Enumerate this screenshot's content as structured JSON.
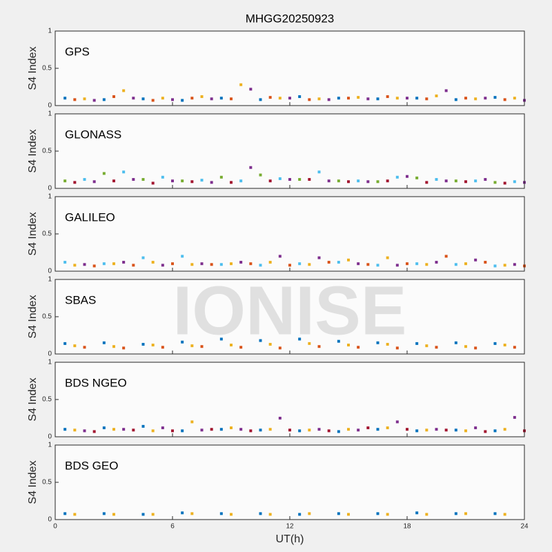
{
  "watermark": "IONISE",
  "chart_data": [
    {
      "type": "scatter",
      "title": "MHGG20250923",
      "label": "GPS",
      "ylabel": "S4 Index",
      "xlim": [
        0,
        24
      ],
      "xticks": [
        0,
        6,
        12,
        18,
        24
      ],
      "ylim": [
        0,
        1
      ],
      "yticks": [
        0,
        0.5,
        1
      ],
      "series": [
        {
          "color": "#0072BD",
          "x": [
            0.5,
            2.5,
            4.5,
            6.5,
            8.5,
            10.5,
            12.5,
            14.5,
            16.5,
            18.5,
            20.5,
            22.5
          ],
          "values": [
            0.1,
            0.08,
            0.09,
            0.07,
            0.1,
            0.08,
            0.12,
            0.1,
            0.09,
            0.1,
            0.08,
            0.11
          ]
        },
        {
          "color": "#D95319",
          "x": [
            1,
            3,
            5,
            7,
            9,
            11,
            13,
            15,
            17,
            19,
            21,
            23
          ],
          "values": [
            0.08,
            0.12,
            0.07,
            0.1,
            0.09,
            0.11,
            0.08,
            0.1,
            0.12,
            0.09,
            0.1,
            0.08
          ]
        },
        {
          "color": "#EDB120",
          "x": [
            1.5,
            3.5,
            5.5,
            7.5,
            9.5,
            11.5,
            13.5,
            15.5,
            17.5,
            19.5,
            21.5,
            23.5
          ],
          "values": [
            0.09,
            0.2,
            0.1,
            0.12,
            0.28,
            0.1,
            0.09,
            0.11,
            0.1,
            0.13,
            0.09,
            0.1
          ]
        },
        {
          "color": "#7E2F8E",
          "x": [
            2,
            4,
            6,
            8,
            10,
            12,
            14,
            16,
            18,
            20,
            22,
            24
          ],
          "values": [
            0.07,
            0.1,
            0.08,
            0.09,
            0.22,
            0.1,
            0.08,
            0.09,
            0.1,
            0.2,
            0.1,
            0.07
          ]
        }
      ]
    },
    {
      "type": "scatter",
      "label": "GLONASS",
      "ylabel": "S4 Index",
      "xlim": [
        0,
        24
      ],
      "xticks": [
        0,
        6,
        12,
        18,
        24
      ],
      "ylim": [
        0,
        1
      ],
      "yticks": [
        0,
        0.5,
        1
      ],
      "series": [
        {
          "color": "#77AC30",
          "x": [
            0.5,
            2.5,
            4.5,
            6.5,
            8.5,
            10.5,
            12.5,
            14.5,
            16.5,
            18.5,
            20.5,
            22.5
          ],
          "values": [
            0.1,
            0.2,
            0.12,
            0.1,
            0.15,
            0.18,
            0.12,
            0.1,
            0.09,
            0.14,
            0.1,
            0.08
          ]
        },
        {
          "color": "#A2142F",
          "x": [
            1,
            3,
            5,
            7,
            9,
            11,
            13,
            15,
            17,
            19,
            21,
            23
          ],
          "values": [
            0.08,
            0.1,
            0.07,
            0.09,
            0.08,
            0.1,
            0.12,
            0.09,
            0.1,
            0.08,
            0.09,
            0.07
          ]
        },
        {
          "color": "#4DBEEE",
          "x": [
            1.5,
            3.5,
            5.5,
            7.5,
            9.5,
            11.5,
            13.5,
            15.5,
            17.5,
            19.5,
            21.5,
            23.5
          ],
          "values": [
            0.12,
            0.22,
            0.15,
            0.11,
            0.1,
            0.13,
            0.22,
            0.1,
            0.15,
            0.12,
            0.1,
            0.09
          ]
        },
        {
          "color": "#7E2F8E",
          "x": [
            2,
            4,
            6,
            8,
            10,
            12,
            14,
            16,
            18,
            20,
            22,
            24
          ],
          "values": [
            0.09,
            0.12,
            0.1,
            0.08,
            0.28,
            0.12,
            0.1,
            0.09,
            0.16,
            0.1,
            0.12,
            0.08
          ]
        }
      ]
    },
    {
      "type": "scatter",
      "label": "GALILEO",
      "ylabel": "S4 Index",
      "xlim": [
        0,
        24
      ],
      "xticks": [
        0,
        6,
        12,
        18,
        24
      ],
      "ylim": [
        0,
        1
      ],
      "yticks": [
        0,
        0.5,
        1
      ],
      "series": [
        {
          "color": "#4DBEEE",
          "x": [
            0.5,
            2.5,
            4.5,
            6.5,
            8.5,
            10.5,
            12.5,
            14.5,
            16.5,
            18.5,
            20.5,
            22.5
          ],
          "values": [
            0.12,
            0.1,
            0.18,
            0.2,
            0.09,
            0.08,
            0.1,
            0.12,
            0.08,
            0.1,
            0.09,
            0.07
          ]
        },
        {
          "color": "#EDB120",
          "x": [
            1,
            3,
            5,
            7,
            9,
            11,
            13,
            15,
            17,
            19,
            21,
            23
          ],
          "values": [
            0.08,
            0.1,
            0.12,
            0.09,
            0.1,
            0.12,
            0.09,
            0.15,
            0.18,
            0.09,
            0.1,
            0.08
          ]
        },
        {
          "color": "#7E2F8E",
          "x": [
            1.5,
            3.5,
            5.5,
            7.5,
            9.5,
            11.5,
            13.5,
            15.5,
            17.5,
            19.5,
            21.5,
            23.5
          ],
          "values": [
            0.09,
            0.12,
            0.08,
            0.1,
            0.12,
            0.2,
            0.18,
            0.1,
            0.08,
            0.12,
            0.15,
            0.09
          ]
        },
        {
          "color": "#D95319",
          "x": [
            2,
            4,
            6,
            8,
            10,
            12,
            14,
            16,
            18,
            20,
            22,
            24
          ],
          "values": [
            0.07,
            0.08,
            0.1,
            0.09,
            0.1,
            0.08,
            0.12,
            0.09,
            0.1,
            0.2,
            0.12,
            0.07
          ]
        }
      ]
    },
    {
      "type": "scatter",
      "label": "SBAS",
      "ylabel": "S4 Index",
      "xlim": [
        0,
        24
      ],
      "xticks": [
        0,
        6,
        12,
        18,
        24
      ],
      "ylim": [
        0,
        1
      ],
      "yticks": [
        0,
        0.5,
        1
      ],
      "series": [
        {
          "color": "#0072BD",
          "x": [
            0.5,
            2.5,
            4.5,
            6.5,
            8.5,
            10.5,
            12.5,
            14.5,
            16.5,
            18.5,
            20.5,
            22.5
          ],
          "values": [
            0.14,
            0.15,
            0.13,
            0.16,
            0.2,
            0.18,
            0.2,
            0.17,
            0.15,
            0.14,
            0.15,
            0.14
          ]
        },
        {
          "color": "#EDB120",
          "x": [
            1,
            3,
            5,
            7,
            9,
            11,
            13,
            15,
            17,
            19,
            21,
            23
          ],
          "values": [
            0.11,
            0.1,
            0.12,
            0.11,
            0.12,
            0.13,
            0.14,
            0.12,
            0.13,
            0.11,
            0.1,
            0.12
          ]
        },
        {
          "color": "#D95319",
          "x": [
            1.5,
            3.5,
            5.5,
            7.5,
            9.5,
            11.5,
            13.5,
            15.5,
            17.5,
            19.5,
            21.5,
            23.5
          ],
          "values": [
            0.09,
            0.08,
            0.09,
            0.1,
            0.09,
            0.08,
            0.1,
            0.09,
            0.08,
            0.09,
            0.08,
            0.09
          ]
        }
      ]
    },
    {
      "type": "scatter",
      "label": "BDS NGEO",
      "ylabel": "S4 Index",
      "xlim": [
        0,
        24
      ],
      "xticks": [
        0,
        6,
        12,
        18,
        24
      ],
      "ylim": [
        0,
        1
      ],
      "yticks": [
        0,
        0.5,
        1
      ],
      "series": [
        {
          "color": "#0072BD",
          "x": [
            0.5,
            2.5,
            4.5,
            6.5,
            8.5,
            10.5,
            12.5,
            14.5,
            16.5,
            18.5,
            20.5,
            22.5
          ],
          "values": [
            0.1,
            0.12,
            0.14,
            0.08,
            0.1,
            0.09,
            0.08,
            0.07,
            0.1,
            0.08,
            0.09,
            0.08
          ]
        },
        {
          "color": "#EDB120",
          "x": [
            1,
            3,
            5,
            7,
            9,
            11,
            13,
            15,
            17,
            19,
            21,
            23
          ],
          "values": [
            0.09,
            0.1,
            0.08,
            0.2,
            0.12,
            0.1,
            0.09,
            0.1,
            0.12,
            0.09,
            0.08,
            0.1
          ]
        },
        {
          "color": "#7E2F8E",
          "x": [
            1.5,
            3.5,
            5.5,
            7.5,
            9.5,
            11.5,
            13.5,
            15.5,
            17.5,
            19.5,
            21.5,
            23.5
          ],
          "values": [
            0.08,
            0.1,
            0.12,
            0.09,
            0.1,
            0.25,
            0.1,
            0.09,
            0.2,
            0.1,
            0.12,
            0.26
          ]
        },
        {
          "color": "#A2142F",
          "x": [
            2,
            4,
            6,
            8,
            10,
            12,
            14,
            16,
            18,
            20,
            22,
            24
          ],
          "values": [
            0.07,
            0.09,
            0.08,
            0.1,
            0.08,
            0.09,
            0.08,
            0.12,
            0.1,
            0.09,
            0.07,
            0.08
          ]
        }
      ]
    },
    {
      "type": "scatter",
      "label": "BDS GEO",
      "ylabel": "S4 Index",
      "xlabel": "UT(h)",
      "xlim": [
        0,
        24
      ],
      "xticks": [
        0,
        6,
        12,
        18,
        24
      ],
      "ylim": [
        0,
        1
      ],
      "yticks": [
        0,
        0.5,
        1
      ],
      "series": [
        {
          "color": "#0072BD",
          "x": [
            0.5,
            2.5,
            4.5,
            6.5,
            8.5,
            10.5,
            12.5,
            14.5,
            16.5,
            18.5,
            20.5,
            22.5
          ],
          "values": [
            0.08,
            0.08,
            0.07,
            0.09,
            0.08,
            0.08,
            0.07,
            0.08,
            0.08,
            0.09,
            0.08,
            0.08
          ]
        },
        {
          "color": "#EDB120",
          "x": [
            1,
            3,
            5,
            7,
            9,
            11,
            13,
            15,
            17,
            19,
            21,
            23
          ],
          "values": [
            0.07,
            0.07,
            0.07,
            0.08,
            0.07,
            0.07,
            0.08,
            0.07,
            0.07,
            0.07,
            0.08,
            0.07
          ]
        }
      ]
    }
  ]
}
